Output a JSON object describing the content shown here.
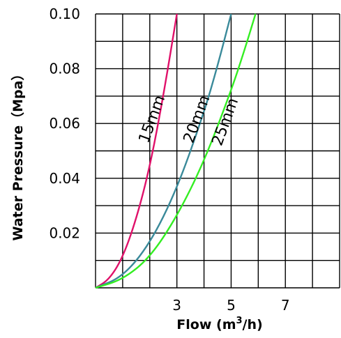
{
  "chart_data": {
    "type": "line",
    "xlabel": "Flow (m",
    "xlabel_sup": "3",
    "xlabel_tail": "/h)",
    "ylabel": "Water Pressure（Mpa）",
    "xlim": [
      0,
      9
    ],
    "ylim": [
      0,
      0.1
    ],
    "x_ticks": [
      {
        "value": 3,
        "label": "3"
      },
      {
        "value": 5,
        "label": "5"
      },
      {
        "value": 7,
        "label": "7"
      }
    ],
    "y_ticks": [
      {
        "value": 0.02,
        "label": "0.02"
      },
      {
        "value": 0.04,
        "label": "0.04"
      },
      {
        "value": 0.06,
        "label": "0.06"
      },
      {
        "value": 0.08,
        "label": "0.08"
      },
      {
        "value": 0.1,
        "label": "0.10"
      }
    ],
    "grid": true,
    "series": [
      {
        "name": "15mm",
        "color": "#e0116a",
        "x": [
          0,
          0.5,
          1.0,
          1.5,
          2.0,
          2.5,
          3.0
        ],
        "y": [
          0,
          0.003,
          0.011,
          0.025,
          0.044,
          0.07,
          0.1
        ]
      },
      {
        "name": "20mm",
        "color": "#3a8a9a",
        "x": [
          0,
          1.0,
          2.0,
          3.0,
          4.0,
          4.5,
          5.0
        ],
        "y": [
          0,
          0.004,
          0.016,
          0.036,
          0.064,
          0.081,
          0.1
        ]
      },
      {
        "name": "25mm",
        "color": "#33ee22",
        "x": [
          0,
          1.0,
          2.0,
          3.0,
          4.0,
          5.0,
          5.5,
          5.9
        ],
        "y": [
          0,
          0.003,
          0.011,
          0.026,
          0.046,
          0.072,
          0.087,
          0.1
        ]
      }
    ]
  }
}
